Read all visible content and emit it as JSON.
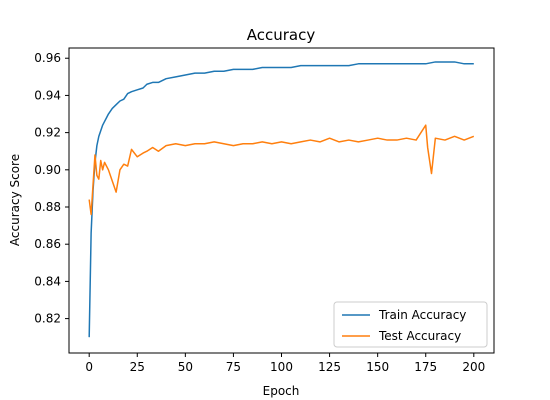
{
  "chart_data": {
    "type": "line",
    "title": "Accuracy",
    "xlabel": "Epoch",
    "ylabel": "Accuracy Score",
    "xlim": [
      -10.5,
      210.5
    ],
    "ylim": [
      0.8015,
      0.9655
    ],
    "xticks": [
      0,
      25,
      50,
      75,
      100,
      125,
      150,
      175,
      200
    ],
    "yticks": [
      0.82,
      0.84,
      0.86,
      0.88,
      0.9,
      0.92,
      0.94,
      0.96
    ],
    "ytick_labels": [
      "0.82",
      "0.84",
      "0.86",
      "0.88",
      "0.90",
      "0.92",
      "0.94",
      "0.96"
    ],
    "grid": false,
    "legend_position": "lower-right",
    "series": [
      {
        "name": "Train Accuracy",
        "color": "#1f77b4",
        "x": [
          0,
          1,
          2,
          3,
          4,
          5,
          6,
          7,
          8,
          9,
          10,
          12,
          14,
          16,
          18,
          20,
          22,
          25,
          28,
          30,
          33,
          36,
          40,
          45,
          50,
          55,
          60,
          65,
          70,
          75,
          80,
          85,
          90,
          95,
          100,
          105,
          110,
          115,
          120,
          125,
          130,
          135,
          140,
          145,
          150,
          155,
          160,
          165,
          170,
          175,
          180,
          185,
          190,
          195,
          200
        ],
        "y": [
          0.81,
          0.866,
          0.889,
          0.904,
          0.913,
          0.918,
          0.921,
          0.924,
          0.926,
          0.928,
          0.93,
          0.933,
          0.935,
          0.937,
          0.938,
          0.941,
          0.942,
          0.943,
          0.944,
          0.946,
          0.947,
          0.947,
          0.949,
          0.95,
          0.951,
          0.952,
          0.952,
          0.953,
          0.953,
          0.954,
          0.954,
          0.954,
          0.955,
          0.955,
          0.955,
          0.955,
          0.956,
          0.956,
          0.956,
          0.956,
          0.956,
          0.956,
          0.957,
          0.957,
          0.957,
          0.957,
          0.957,
          0.957,
          0.957,
          0.957,
          0.958,
          0.958,
          0.958,
          0.957,
          0.957
        ]
      },
      {
        "name": "Test Accuracy",
        "color": "#ff7f0e",
        "x": [
          0,
          1,
          2,
          3,
          4,
          5,
          6,
          7,
          8,
          10,
          12,
          14,
          16,
          18,
          20,
          22,
          25,
          28,
          30,
          33,
          36,
          40,
          45,
          50,
          55,
          60,
          65,
          70,
          75,
          80,
          85,
          90,
          95,
          100,
          105,
          110,
          115,
          120,
          125,
          130,
          135,
          140,
          145,
          150,
          155,
          160,
          165,
          170,
          175,
          176,
          178,
          180,
          185,
          190,
          195,
          200
        ],
        "y": [
          0.884,
          0.876,
          0.892,
          0.908,
          0.897,
          0.895,
          0.905,
          0.9,
          0.904,
          0.9,
          0.894,
          0.888,
          0.9,
          0.903,
          0.902,
          0.911,
          0.907,
          0.909,
          0.91,
          0.912,
          0.91,
          0.913,
          0.914,
          0.913,
          0.914,
          0.914,
          0.915,
          0.914,
          0.913,
          0.914,
          0.914,
          0.915,
          0.914,
          0.915,
          0.914,
          0.915,
          0.916,
          0.915,
          0.917,
          0.915,
          0.916,
          0.915,
          0.916,
          0.917,
          0.916,
          0.916,
          0.917,
          0.916,
          0.924,
          0.912,
          0.898,
          0.917,
          0.916,
          0.918,
          0.916,
          0.918
        ]
      }
    ]
  }
}
